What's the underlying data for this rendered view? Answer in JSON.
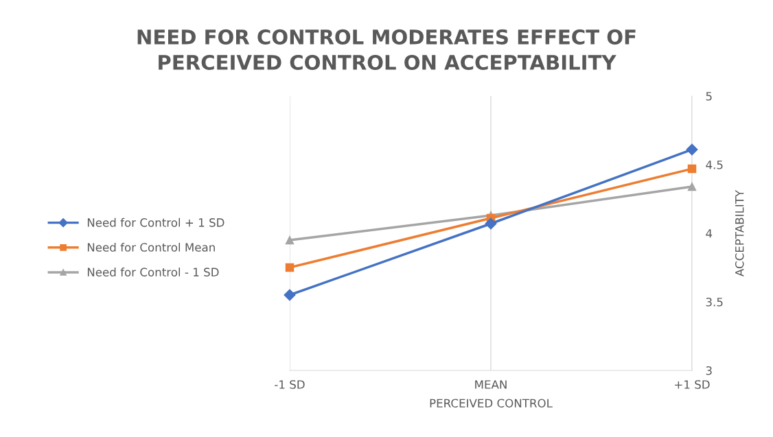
{
  "chart_data": {
    "type": "line",
    "title": "NEED FOR CONTROL MODERATES EFFECT OF\nPERCEIVED CONTROL ON ACCEPTABILITY",
    "xlabel": "PERCEIVED CONTROL",
    "ylabel": "ACCEPTABILITY",
    "categories": [
      "-1 SD",
      "MEAN",
      "+1 SD"
    ],
    "series": [
      {
        "name": "Need for Control + 1 SD",
        "color": "#4472c4",
        "marker": "diamond",
        "values": [
          3.55,
          4.07,
          4.61
        ]
      },
      {
        "name": "Need for Control Mean",
        "color": "#ed7d31",
        "marker": "square",
        "values": [
          3.75,
          4.11,
          4.47
        ]
      },
      {
        "name": "Need for Control - 1 SD",
        "color": "#a5a5a5",
        "marker": "triangle",
        "values": [
          3.95,
          4.13,
          4.34
        ]
      }
    ],
    "ylim": [
      3,
      5
    ],
    "yticks": [
      3,
      3.5,
      4,
      4.5,
      5
    ],
    "grid": "x",
    "legend": "left"
  }
}
